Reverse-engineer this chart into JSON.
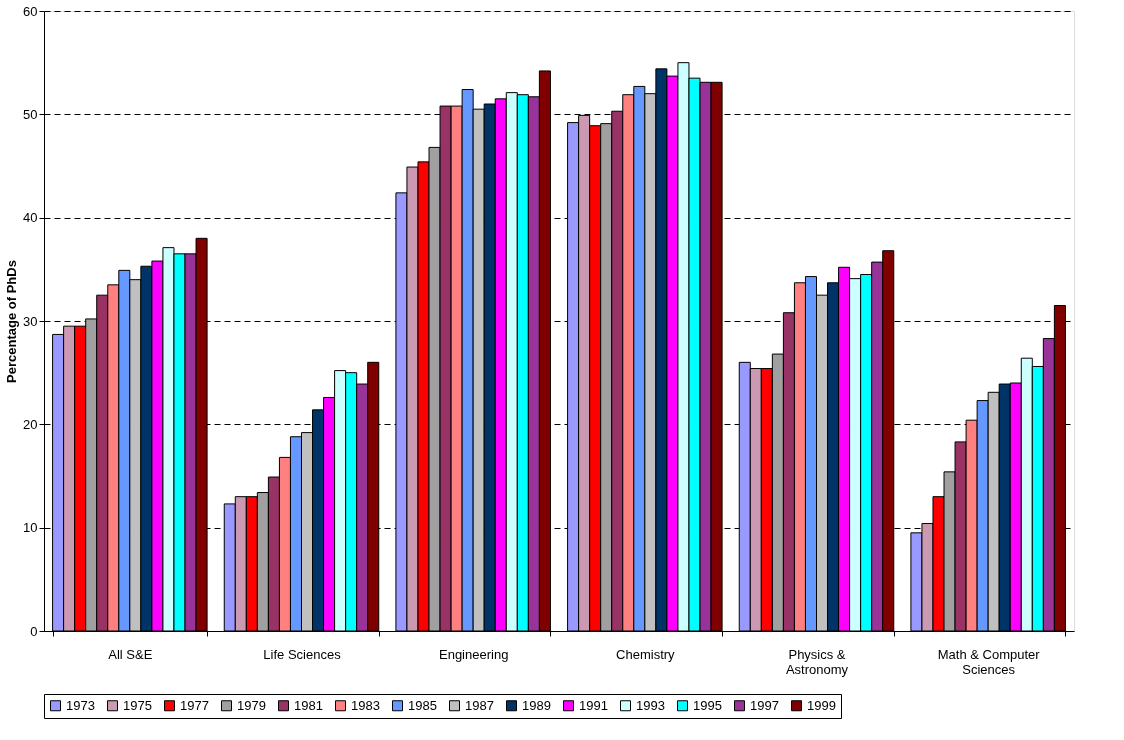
{
  "chart_data": {
    "type": "bar",
    "ylabel": "Percentage of PhDs",
    "categories": [
      "All S&E",
      "Life Sciences",
      "Engineering",
      "Chemistry",
      "Physics & Astronomy",
      "Math & Computer Sciences"
    ],
    "series": [
      {
        "name": "1973",
        "color": "#9999ff",
        "values": [
          28.7,
          12.3,
          42.4,
          49.2,
          26.0,
          9.5
        ]
      },
      {
        "name": "1975",
        "color": "#cc99b3",
        "values": [
          29.5,
          13.0,
          44.9,
          49.9,
          25.4,
          10.4
        ]
      },
      {
        "name": "1977",
        "color": "#ff0000",
        "values": [
          29.5,
          13.0,
          45.4,
          48.9,
          25.4,
          13.0
        ]
      },
      {
        "name": "1979",
        "color": "#a0a0a0",
        "values": [
          30.2,
          13.4,
          46.8,
          49.1,
          26.8,
          15.4
        ]
      },
      {
        "name": "1981",
        "color": "#993366",
        "values": [
          32.5,
          14.9,
          50.8,
          50.3,
          30.8,
          18.3
        ]
      },
      {
        "name": "1983",
        "color": "#ff8080",
        "values": [
          33.5,
          16.8,
          50.8,
          51.9,
          33.7,
          20.4
        ]
      },
      {
        "name": "1985",
        "color": "#6699ff",
        "values": [
          34.9,
          18.8,
          52.4,
          52.7,
          34.3,
          22.3
        ]
      },
      {
        "name": "1987",
        "color": "#c0c0c0",
        "values": [
          34.0,
          19.2,
          50.5,
          52.0,
          32.5,
          23.1
        ]
      },
      {
        "name": "1989",
        "color": "#003366",
        "values": [
          35.3,
          21.4,
          51.0,
          54.4,
          33.7,
          23.9
        ]
      },
      {
        "name": "1991",
        "color": "#ff00ff",
        "values": [
          35.8,
          22.6,
          51.5,
          53.7,
          35.2,
          24.0
        ]
      },
      {
        "name": "1993",
        "color": "#ccffff",
        "values": [
          37.1,
          25.2,
          52.1,
          55.0,
          34.1,
          26.4
        ]
      },
      {
        "name": "1995",
        "color": "#00ffff",
        "values": [
          36.5,
          25.0,
          51.9,
          53.5,
          34.5,
          25.6
        ]
      },
      {
        "name": "1997",
        "color": "#993399",
        "values": [
          36.5,
          23.9,
          51.7,
          53.1,
          35.7,
          28.3
        ]
      },
      {
        "name": "1999",
        "color": "#800000",
        "values": [
          38.0,
          26.0,
          54.2,
          53.1,
          36.8,
          31.5
        ]
      }
    ],
    "ylim": [
      0,
      60
    ],
    "yticks": [
      0,
      10,
      20,
      30,
      40,
      50,
      60
    ],
    "grid": "y",
    "legend": "bottom"
  }
}
